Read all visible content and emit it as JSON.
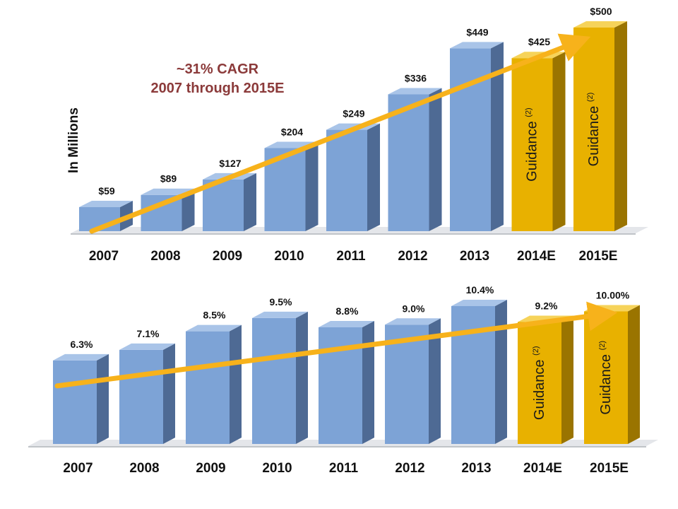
{
  "colors": {
    "actual_front": "#7da3d6",
    "actual_side": "#4e6a94",
    "actual_top": "#a9c4e8",
    "guidance_front": "#e8b100",
    "guidance_side": "#9a7400",
    "guidance_top": "#f6d35a",
    "trend_arrow": "#f7b21b",
    "cagr_text": "#8b3a3a"
  },
  "chart_data": [
    {
      "type": "bar",
      "ylabel": "In Millions",
      "annotation": [
        "~31% CAGR",
        "2007 through 2015E"
      ],
      "categories": [
        "2007",
        "2008",
        "2009",
        "2010",
        "2011",
        "2012",
        "2013",
        "2014E",
        "2015E"
      ],
      "values": [
        59,
        89,
        127,
        204,
        249,
        336,
        449,
        425,
        500
      ],
      "value_labels": [
        "$59",
        "$89",
        "$127",
        "$204",
        "$249",
        "$336",
        "$449",
        "$425",
        "$500"
      ],
      "guidance": [
        false,
        false,
        false,
        false,
        false,
        false,
        false,
        true,
        true
      ],
      "guidance_text": "Guidance",
      "guidance_note": "(2)",
      "ylim": [
        0,
        500
      ],
      "grid": false,
      "trend_arrow": true
    },
    {
      "type": "bar",
      "categories": [
        "2007",
        "2008",
        "2009",
        "2010",
        "2011",
        "2012",
        "2013",
        "2014E",
        "2015E"
      ],
      "values": [
        6.3,
        7.1,
        8.5,
        9.5,
        8.8,
        9.0,
        10.4,
        9.2,
        10.0
      ],
      "value_labels": [
        "6.3%",
        "7.1%",
        "8.5%",
        "9.5%",
        "8.8%",
        "9.0%",
        "10.4%",
        "9.2%",
        "10.00%"
      ],
      "guidance": [
        false,
        false,
        false,
        false,
        false,
        false,
        false,
        true,
        true
      ],
      "guidance_text": "Guidance",
      "guidance_note": "(2)",
      "ylim": [
        0,
        10.4
      ],
      "grid": false,
      "trend_arrow": true
    }
  ]
}
